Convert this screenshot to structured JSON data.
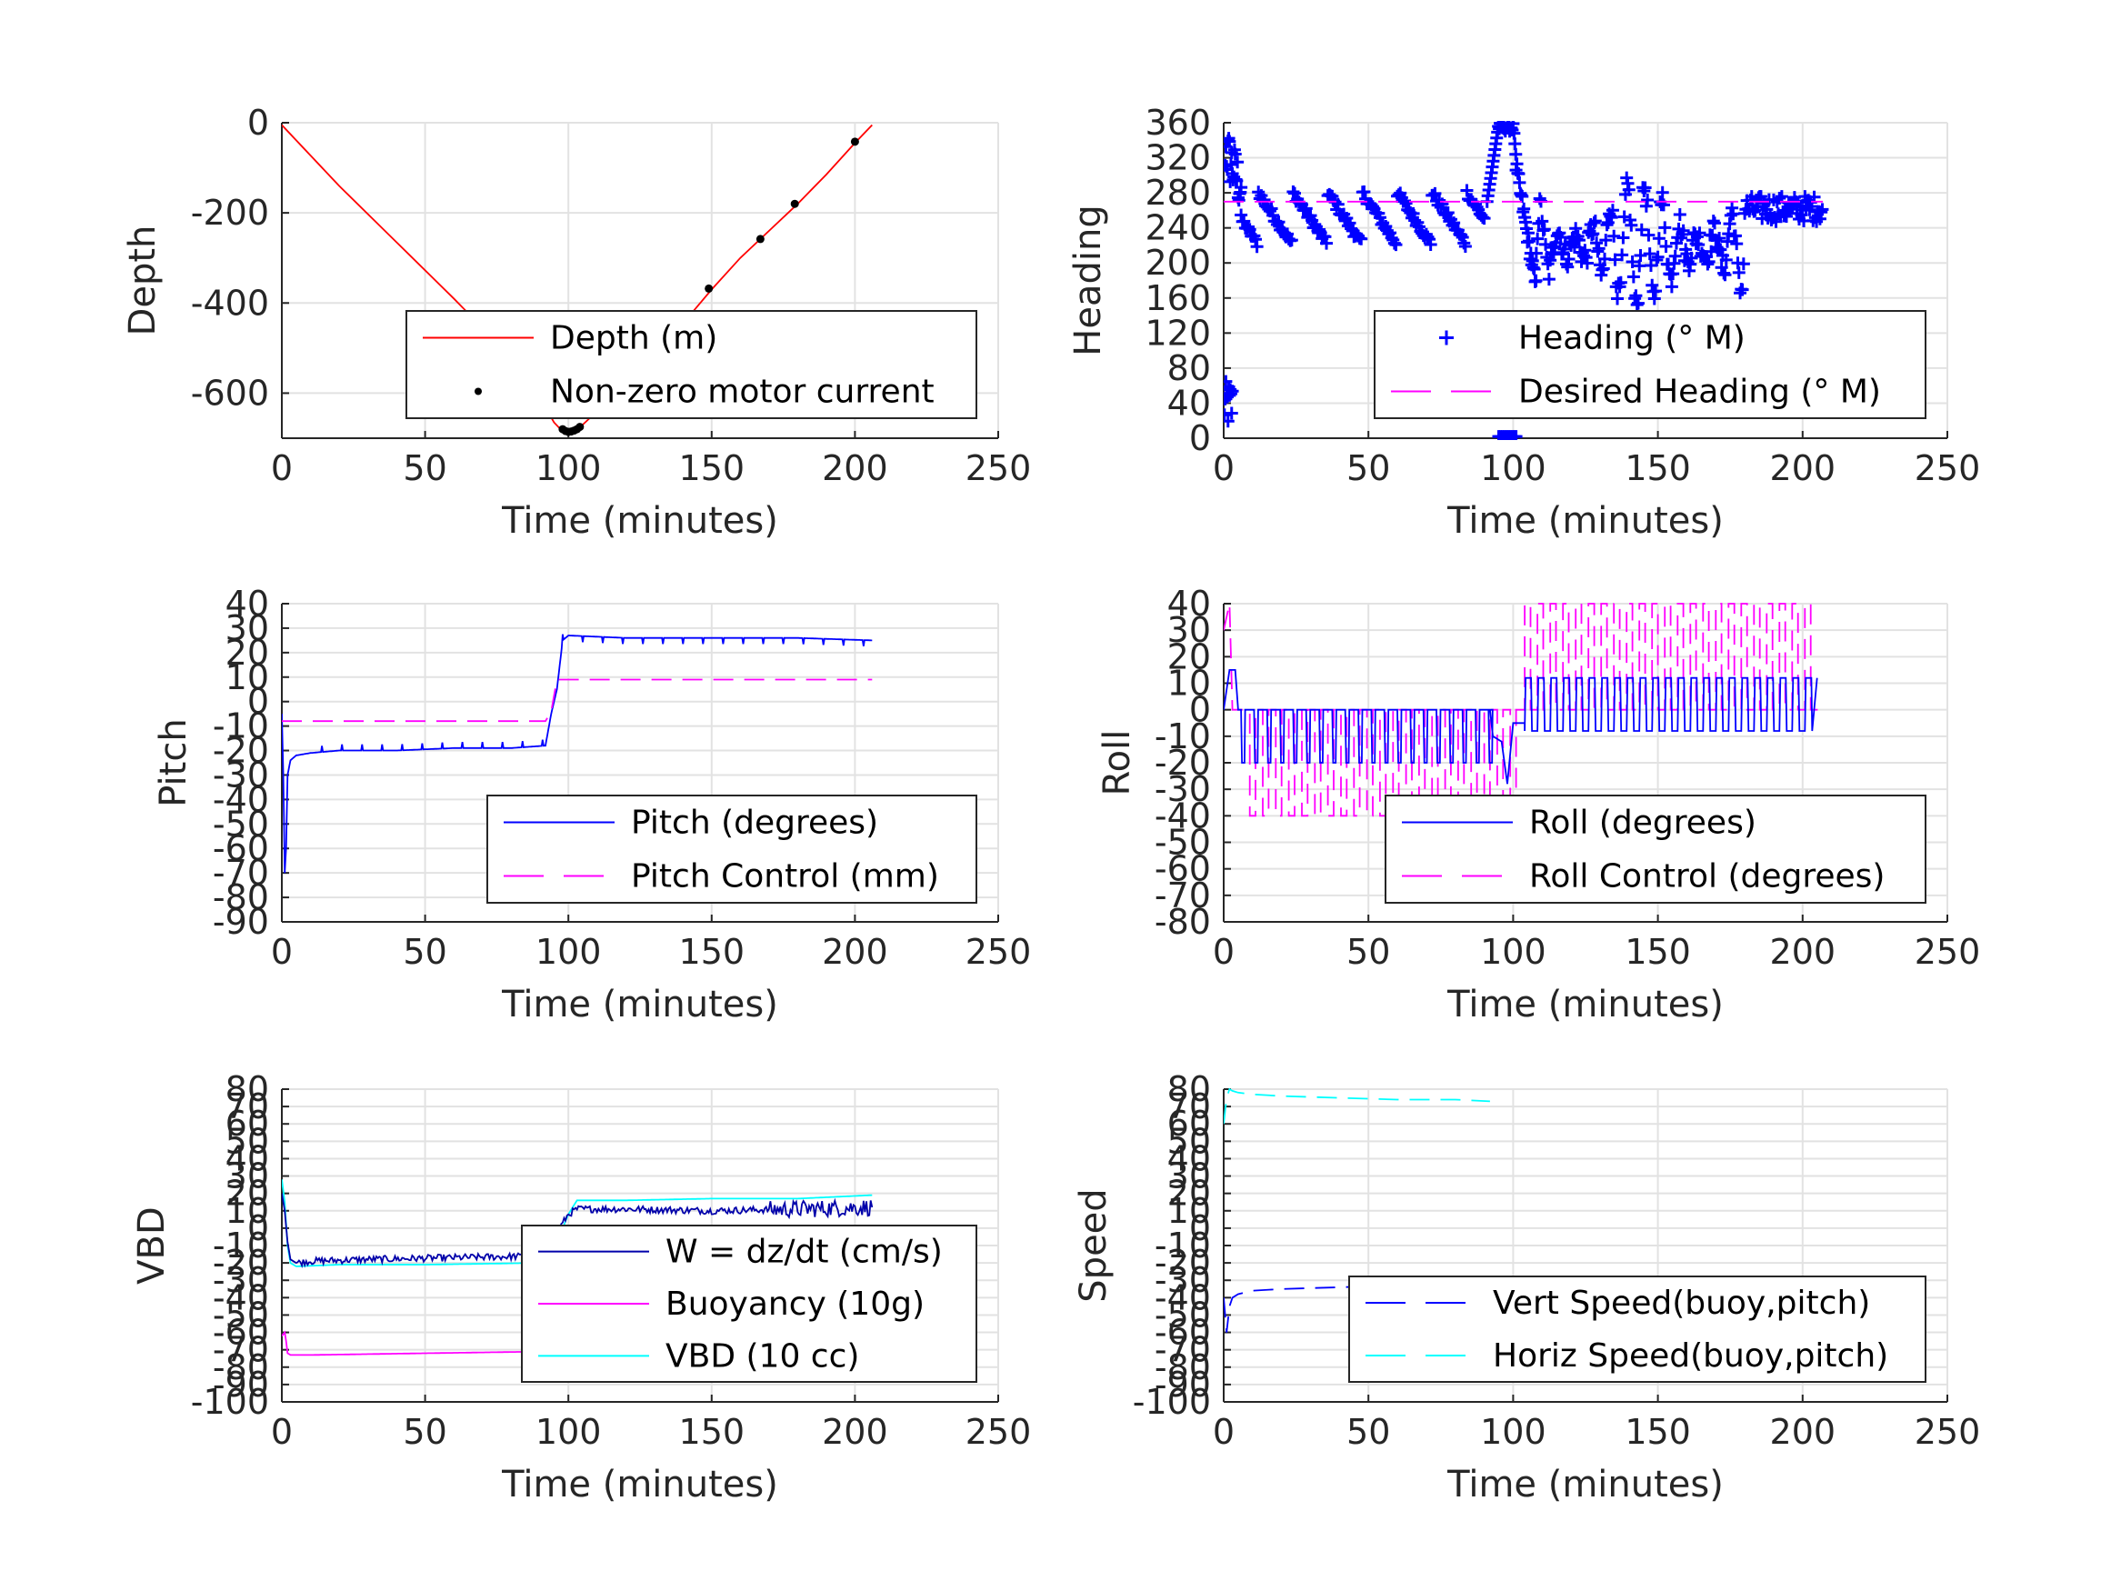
{
  "chart_data": [
    {
      "id": "depth",
      "type": "line",
      "ylabel": "Depth",
      "xlabel": "Time (minutes)",
      "xlim": [
        0,
        250
      ],
      "ylim": [
        -700,
        0
      ],
      "xticks": [
        0,
        50,
        100,
        150,
        200,
        250
      ],
      "yticks": [
        0,
        -200,
        -400,
        -600
      ],
      "ytick_labels": [
        "0",
        "-200",
        "-400",
        "-600"
      ],
      "grid": true,
      "legend_position": "lower-right",
      "series": [
        {
          "name": "Depth (m)",
          "color": "#ff0000",
          "style": "solid",
          "x": [
            0,
            20,
            40,
            60,
            80,
            90,
            95,
            98,
            100,
            102,
            105,
            110,
            120,
            140,
            150,
            160,
            170,
            180,
            190,
            200,
            206
          ],
          "y": [
            -5,
            -140,
            -265,
            -390,
            -520,
            -610,
            -665,
            -685,
            -690,
            -686,
            -670,
            -640,
            -580,
            -445,
            -370,
            -300,
            -240,
            -180,
            -115,
            -45,
            -5
          ]
        },
        {
          "name": "Non-zero motor current",
          "color": "#000000",
          "style": "dot",
          "x": [
            98,
            99,
            100,
            101,
            102,
            103,
            104,
            149,
            167,
            179,
            200
          ],
          "y": [
            -680,
            -684,
            -686,
            -685,
            -683,
            -680,
            -675,
            -368,
            -258,
            -180,
            -42
          ]
        }
      ]
    },
    {
      "id": "heading",
      "type": "scatter",
      "ylabel": "Heading",
      "xlabel": "Time (minutes)",
      "xlim": [
        0,
        250
      ],
      "ylim": [
        0,
        360
      ],
      "xticks": [
        0,
        50,
        100,
        150,
        200,
        250
      ],
      "yticks": [
        0,
        40,
        80,
        120,
        160,
        200,
        240,
        280,
        320,
        360
      ],
      "ytick_labels": [
        "0",
        "40",
        "80",
        "120",
        "160",
        "200",
        "240",
        "280",
        "320",
        "360"
      ],
      "grid": true,
      "legend_position": "lower-right",
      "series": [
        {
          "name": "Heading (° M)",
          "color": "#0000ff",
          "style": "plus"
        },
        {
          "name": "Desired Heading (° M)",
          "color": "#ff00ff",
          "style": "dashed",
          "x": [
            0,
            207
          ],
          "y": [
            270,
            270
          ]
        }
      ]
    },
    {
      "id": "pitch",
      "type": "line",
      "ylabel": "Pitch",
      "xlabel": "Time (minutes)",
      "xlim": [
        0,
        250
      ],
      "ylim": [
        -90,
        40
      ],
      "xticks": [
        0,
        50,
        100,
        150,
        200,
        250
      ],
      "yticks": [
        40,
        30,
        20,
        10,
        0,
        -10,
        -20,
        -30,
        -40,
        -50,
        -60,
        -70,
        -80,
        -90
      ],
      "ytick_labels": [
        "40",
        "30",
        "20",
        "10",
        "0",
        "-10",
        "-20",
        "-30",
        "-40",
        "-50",
        "-60",
        "-70",
        "-80",
        "-90"
      ],
      "grid": true,
      "legend_position": "lower-right",
      "series": [
        {
          "name": "Pitch (degrees)",
          "color": "#0000ff",
          "style": "solid",
          "x": [
            0,
            0.5,
            1,
            1.5,
            2,
            3,
            5,
            10,
            20,
            40,
            60,
            80,
            92,
            94,
            96,
            98,
            100,
            120,
            150,
            180,
            206
          ],
          "y": [
            -5,
            -30,
            -70,
            -60,
            -30,
            -24,
            -22,
            -21,
            -20,
            -20,
            -19,
            -19,
            -18,
            -5,
            5,
            25,
            27,
            26,
            26,
            26,
            25
          ]
        },
        {
          "name": "Pitch Control (mm)",
          "color": "#ff00ff",
          "style": "dashed",
          "x": [
            0,
            92,
            94,
            96,
            206
          ],
          "y": [
            -8,
            -8,
            -4,
            9,
            9
          ]
        }
      ]
    },
    {
      "id": "roll",
      "type": "line",
      "ylabel": "Roll",
      "xlabel": "Time (minutes)",
      "xlim": [
        0,
        250
      ],
      "ylim": [
        -80,
        40
      ],
      "xticks": [
        0,
        50,
        100,
        150,
        200,
        250
      ],
      "yticks": [
        40,
        30,
        20,
        10,
        0,
        -10,
        -20,
        -30,
        -40,
        -50,
        -60,
        -70,
        -80
      ],
      "ytick_labels": [
        "40",
        "30",
        "20",
        "10",
        "0",
        "-10",
        "-20",
        "-30",
        "-40",
        "-50",
        "-60",
        "-70",
        "-80"
      ],
      "grid": true,
      "legend_position": "lower-right",
      "series": [
        {
          "name": "Roll (degrees)",
          "color": "#0000ff",
          "style": "solid"
        },
        {
          "name": "Roll Control (degrees)",
          "color": "#ff00ff",
          "style": "dashed"
        }
      ]
    },
    {
      "id": "vbd",
      "type": "line",
      "ylabel": "VBD",
      "xlabel": "Time (minutes)",
      "xlim": [
        0,
        250
      ],
      "ylim": [
        -100,
        80
      ],
      "xticks": [
        0,
        50,
        100,
        150,
        200,
        250
      ],
      "yticks": [
        80,
        70,
        60,
        50,
        40,
        30,
        20,
        10,
        0,
        -10,
        -20,
        -30,
        -40,
        -50,
        -60,
        -70,
        -80,
        -90,
        -100
      ],
      "ytick_labels": [
        "80",
        "70",
        "60",
        "50",
        "40",
        "30",
        "20",
        "10",
        "0",
        "-10",
        "-20",
        "-30",
        "-40",
        "-50",
        "-60",
        "-70",
        "-80",
        "-90",
        "-100"
      ],
      "grid": true,
      "legend_position": "lower-right",
      "series": [
        {
          "name": "W = dz/dt (cm/s)",
          "color": "#0000aa",
          "style": "solid",
          "x": [
            0,
            1,
            2,
            3,
            5,
            10,
            30,
            60,
            90,
            92,
            95,
            100,
            103,
            120,
            150,
            180,
            206
          ],
          "y": [
            20,
            10,
            -8,
            -18,
            -20,
            -19,
            -18,
            -17,
            -16,
            -10,
            -5,
            8,
            11,
            11,
            10,
            11,
            12
          ]
        },
        {
          "name": "Buoyancy (10g)",
          "color": "#ff00ff",
          "style": "solid",
          "x": [
            0,
            1,
            1.5,
            2,
            3,
            10,
            50,
            92
          ],
          "y": [
            -62,
            -60,
            -65,
            -72,
            -73,
            -73,
            -72,
            -71
          ]
        },
        {
          "name": "VBD (10 cc)",
          "color": "#00ffff",
          "style": "solid",
          "x": [
            0,
            1,
            2,
            3,
            5,
            20,
            50,
            90,
            92,
            95,
            100,
            103,
            120,
            150,
            180,
            206
          ],
          "y": [
            28,
            15,
            -10,
            -20,
            -22,
            -21,
            -21,
            -20,
            -18,
            -12,
            8,
            16,
            16,
            17,
            17,
            19
          ]
        }
      ]
    },
    {
      "id": "speed",
      "type": "line",
      "ylabel": "Speed",
      "xlabel": "Time (minutes)",
      "xlim": [
        0,
        250
      ],
      "ylim": [
        -100,
        80
      ],
      "xticks": [
        0,
        50,
        100,
        150,
        200,
        250
      ],
      "yticks": [
        80,
        70,
        60,
        50,
        40,
        30,
        20,
        10,
        0,
        -10,
        -20,
        -30,
        -40,
        -50,
        -60,
        -70,
        -80,
        -90,
        -100
      ],
      "ytick_labels": [
        "80",
        "70",
        "60",
        "50",
        "40",
        "30",
        "20",
        "10",
        "0",
        "-10",
        "-20",
        "-30",
        "-40",
        "-50",
        "-60",
        "-70",
        "-80",
        "-90",
        "-100"
      ],
      "grid": true,
      "legend_position": "lower-right",
      "series": [
        {
          "name": "Vert Speed(buoy,pitch)",
          "color": "#0000ff",
          "style": "dashed",
          "x": [
            0,
            1,
            2,
            3,
            5,
            10,
            20,
            40,
            60,
            80,
            92
          ],
          "y": [
            -40,
            -60,
            -45,
            -40,
            -38,
            -36,
            -35,
            -34,
            -33,
            -33,
            -33
          ]
        },
        {
          "name": "Horiz Speed(buoy,pitch)",
          "color": "#00ffff",
          "style": "dashed",
          "x": [
            0,
            1,
            2,
            3,
            5,
            10,
            20,
            40,
            60,
            80,
            92
          ],
          "y": [
            60,
            75,
            80,
            79,
            78,
            77,
            76,
            75,
            74,
            74,
            73
          ]
        }
      ]
    }
  ]
}
